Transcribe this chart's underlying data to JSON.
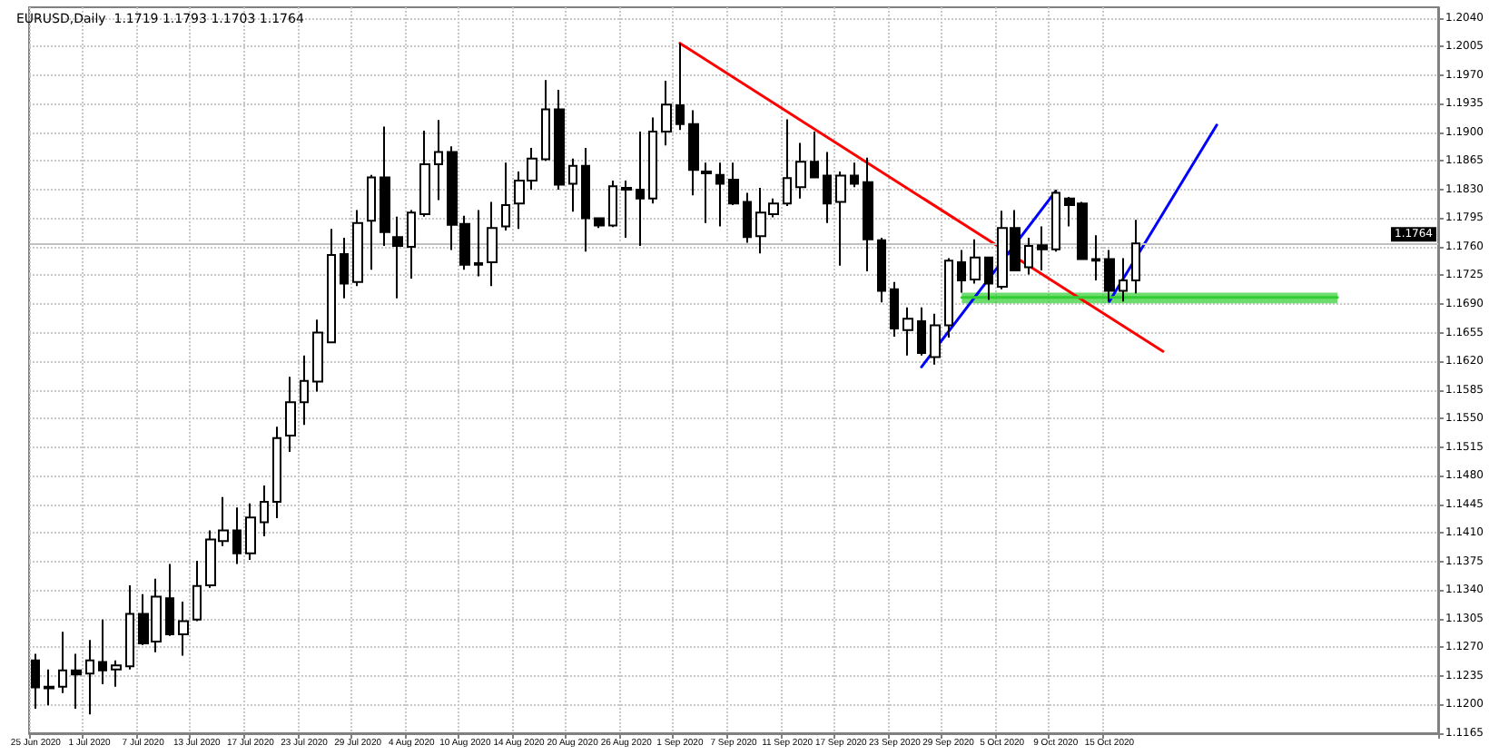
{
  "chart_data": {
    "type": "candlestick",
    "title": "EURUSD,Daily  1.1719 1.1793 1.1703 1.1764",
    "categories": [
      "25 Jun 2020",
      null,
      null,
      null,
      "1 Jul 2020",
      null,
      null,
      null,
      "7 Jul 2020",
      null,
      null,
      null,
      "13 Jul 2020",
      null,
      null,
      null,
      "17 Jul 2020",
      null,
      null,
      null,
      "23 Jul 2020",
      null,
      null,
      null,
      "29 Jul 2020",
      null,
      null,
      null,
      "4 Aug 2020",
      null,
      null,
      null,
      "10 Aug 2020",
      null,
      null,
      null,
      "14 Aug 2020",
      null,
      null,
      null,
      "20 Aug 2020",
      null,
      null,
      null,
      "26 Aug 2020",
      null,
      null,
      null,
      "1 Sep 2020",
      null,
      null,
      null,
      "7 Sep 2020",
      null,
      null,
      null,
      "11 Sep 2020",
      null,
      null,
      null,
      "17 Sep 2020",
      null,
      null,
      null,
      "23 Sep 2020",
      null,
      null,
      null,
      "29 Sep 2020",
      null,
      null,
      null,
      "5 Oct 2020",
      null,
      null,
      null,
      "9 Oct 2020",
      null,
      null,
      null,
      "15 Oct 2020",
      null,
      null,
      null,
      null,
      null,
      null,
      null,
      null,
      null,
      null,
      null,
      null,
      null,
      null,
      null,
      null,
      null,
      null,
      null,
      null,
      null,
      null,
      null,
      null
    ],
    "ohlc": [
      [
        1.1254,
        1.1262,
        1.1195,
        1.1221
      ],
      [
        1.122,
        1.1243,
        1.1199,
        1.1222
      ],
      [
        1.1222,
        1.1289,
        1.1214,
        1.1242
      ],
      [
        1.1242,
        1.1262,
        1.1195,
        1.1237
      ],
      [
        1.1238,
        1.1279,
        1.1188,
        1.1254
      ],
      [
        1.1252,
        1.1304,
        1.1225,
        1.1242
      ],
      [
        1.1243,
        1.1254,
        1.1222,
        1.1248
      ],
      [
        1.1247,
        1.1346,
        1.1243,
        1.1311
      ],
      [
        1.1311,
        1.1335,
        1.1273,
        1.1275
      ],
      [
        1.1277,
        1.1354,
        1.1264,
        1.1332
      ],
      [
        1.133,
        1.1372,
        1.1284,
        1.1286
      ],
      [
        1.1286,
        1.1326,
        1.126,
        1.1302
      ],
      [
        1.1304,
        1.1376,
        1.1302,
        1.1345
      ],
      [
        1.1346,
        1.1413,
        1.1343,
        1.1402
      ],
      [
        1.14,
        1.1454,
        1.1394,
        1.1413
      ],
      [
        1.1413,
        1.1441,
        1.1372,
        1.1385
      ],
      [
        1.1385,
        1.1446,
        1.1377,
        1.1429
      ],
      [
        1.1423,
        1.1468,
        1.1406,
        1.1448
      ],
      [
        1.1448,
        1.154,
        1.1428,
        1.1526
      ],
      [
        1.1529,
        1.1601,
        1.1509,
        1.157
      ],
      [
        1.157,
        1.1627,
        1.1542,
        1.1596
      ],
      [
        1.1595,
        1.1671,
        1.1583,
        1.1655
      ],
      [
        1.1643,
        1.1782,
        1.1642,
        1.175
      ],
      [
        1.1751,
        1.1771,
        1.1697,
        1.1715
      ],
      [
        1.1717,
        1.1805,
        1.1712,
        1.1789
      ],
      [
        1.1792,
        1.1848,
        1.1732,
        1.1845
      ],
      [
        1.1845,
        1.1907,
        1.1761,
        1.1778
      ],
      [
        1.1772,
        1.1797,
        1.1697,
        1.1761
      ],
      [
        1.176,
        1.1805,
        1.1721,
        1.1802
      ],
      [
        1.18,
        1.1902,
        1.1797,
        1.1861
      ],
      [
        1.1861,
        1.1915,
        1.1817,
        1.1876
      ],
      [
        1.1876,
        1.1883,
        1.1756,
        1.1787
      ],
      [
        1.1788,
        1.1798,
        1.1732,
        1.1738
      ],
      [
        1.174,
        1.1805,
        1.1724,
        1.1738
      ],
      [
        1.1741,
        1.1815,
        1.1712,
        1.1783
      ],
      [
        1.1785,
        1.1863,
        1.178,
        1.1811
      ],
      [
        1.1813,
        1.1852,
        1.1782,
        1.1841
      ],
      [
        1.1841,
        1.1881,
        1.183,
        1.1868
      ],
      [
        1.1867,
        1.1964,
        1.1865,
        1.1928
      ],
      [
        1.1928,
        1.1952,
        1.183,
        1.1836
      ],
      [
        1.1837,
        1.1868,
        1.1803,
        1.1859
      ],
      [
        1.1859,
        1.1881,
        1.1754,
        1.1795
      ],
      [
        1.1795,
        1.1795,
        1.1783,
        1.1786
      ],
      [
        1.1786,
        1.1841,
        1.1784,
        1.1834
      ],
      [
        1.1832,
        1.1841,
        1.1771,
        1.183
      ],
      [
        1.183,
        1.1901,
        1.1761,
        1.1819
      ],
      [
        1.1819,
        1.1918,
        1.1813,
        1.1901
      ],
      [
        1.1901,
        1.1963,
        1.1884,
        1.1934
      ],
      [
        1.1933,
        1.2009,
        1.1903,
        1.191
      ],
      [
        1.191,
        1.1927,
        1.1823,
        1.1854
      ],
      [
        1.1852,
        1.1863,
        1.1789,
        1.185
      ],
      [
        1.1848,
        1.1863,
        1.1785,
        1.1837
      ],
      [
        1.1842,
        1.1863,
        1.1811,
        1.1813
      ],
      [
        1.1815,
        1.1826,
        1.1765,
        1.1772
      ],
      [
        1.1773,
        1.1832,
        1.1752,
        1.1802
      ],
      [
        1.18,
        1.1819,
        1.1796,
        1.1813
      ],
      [
        1.1813,
        1.1916,
        1.181,
        1.1844
      ],
      [
        1.1833,
        1.1887,
        1.1819,
        1.1864
      ],
      [
        1.1864,
        1.1901,
        1.1844,
        1.1845
      ],
      [
        1.1847,
        1.1876,
        1.1789,
        1.1813
      ],
      [
        1.1815,
        1.1852,
        1.1737,
        1.1847
      ],
      [
        1.1847,
        1.1863,
        1.1833,
        1.1837
      ],
      [
        1.1839,
        1.1869,
        1.173,
        1.1769
      ],
      [
        1.1768,
        1.1771,
        1.1692,
        1.1706
      ],
      [
        1.1708,
        1.1717,
        1.165,
        1.166
      ],
      [
        1.1658,
        1.1686,
        1.1627,
        1.1672
      ],
      [
        1.1669,
        1.1686,
        1.1627,
        1.163
      ],
      [
        1.1625,
        1.1678,
        1.1616,
        1.1664
      ],
      [
        1.1664,
        1.1746,
        1.1649,
        1.1743
      ],
      [
        1.1741,
        1.1756,
        1.1704,
        1.1719
      ],
      [
        1.172,
        1.1769,
        1.1715,
        1.1747
      ],
      [
        1.1747,
        1.1748,
        1.1695,
        1.1715
      ],
      [
        1.1711,
        1.1804,
        1.1708,
        1.1783
      ],
      [
        1.1783,
        1.1805,
        1.173,
        1.1731
      ],
      [
        1.1735,
        1.1771,
        1.1726,
        1.1761
      ],
      [
        1.1762,
        1.1785,
        1.1731,
        1.1757
      ],
      [
        1.1757,
        1.183,
        1.1754,
        1.1826
      ],
      [
        1.1819,
        1.1821,
        1.1785,
        1.1811
      ],
      [
        1.1813,
        1.1815,
        1.1745,
        1.1745
      ],
      [
        1.1745,
        1.1774,
        1.1719,
        1.1743
      ],
      [
        1.1745,
        1.1756,
        1.1693,
        1.1706
      ],
      [
        1.1706,
        1.1746,
        1.1693,
        1.1719
      ],
      [
        1.1719,
        1.1793,
        1.1703,
        1.1764
      ],
      null,
      null,
      null,
      null,
      null,
      null,
      null,
      null,
      null,
      null,
      null,
      null,
      null,
      null,
      null,
      null,
      null,
      null,
      null,
      null,
      null,
      null
    ],
    "series": [
      {
        "type": "line",
        "color": "#ff0000",
        "values": [
          null,
          null,
          null,
          null,
          null,
          null,
          null,
          null,
          null,
          null,
          null,
          null,
          null,
          null,
          null,
          null,
          null,
          null,
          null,
          null,
          null,
          null,
          null,
          null,
          null,
          null,
          null,
          null,
          null,
          null,
          null,
          null,
          null,
          null,
          null,
          null,
          null,
          null,
          null,
          null,
          null,
          null,
          null,
          null,
          null,
          null,
          null,
          null,
          1.2009,
          null,
          null,
          null,
          null,
          null,
          null,
          null,
          null,
          null,
          null,
          null,
          null,
          null,
          null,
          null,
          null,
          null,
          null,
          null,
          null,
          null,
          null,
          null,
          null,
          null,
          null,
          null,
          null,
          null,
          null,
          null,
          null,
          null,
          null,
          null,
          1.1632,
          null,
          null,
          null,
          null,
          null,
          null,
          null,
          null,
          null,
          null,
          null,
          null,
          null,
          null,
          null,
          null,
          null,
          null,
          null,
          null
        ]
      },
      {
        "type": "line",
        "color": "#0000ff",
        "values": [
          null,
          null,
          null,
          null,
          null,
          null,
          null,
          null,
          null,
          null,
          null,
          null,
          null,
          null,
          null,
          null,
          null,
          null,
          null,
          null,
          null,
          null,
          null,
          null,
          null,
          null,
          null,
          null,
          null,
          null,
          null,
          null,
          null,
          null,
          null,
          null,
          null,
          null,
          null,
          null,
          null,
          null,
          null,
          null,
          null,
          null,
          null,
          null,
          null,
          null,
          null,
          null,
          null,
          null,
          null,
          null,
          null,
          null,
          null,
          null,
          null,
          null,
          null,
          null,
          null,
          null,
          1.1613,
          null,
          null,
          null,
          null,
          null,
          null,
          null,
          null,
          null,
          1.1828,
          null,
          null,
          null,
          null,
          null,
          null,
          null,
          null,
          null,
          null,
          null,
          null,
          null,
          null,
          null,
          null,
          null,
          null,
          null,
          null,
          null,
          null,
          null,
          null,
          null,
          null,
          null,
          null
        ]
      },
      {
        "type": "line",
        "color": "#0000ff",
        "values": [
          null,
          null,
          null,
          null,
          null,
          null,
          null,
          null,
          null,
          null,
          null,
          null,
          null,
          null,
          null,
          null,
          null,
          null,
          null,
          null,
          null,
          null,
          null,
          null,
          null,
          null,
          null,
          null,
          null,
          null,
          null,
          null,
          null,
          null,
          null,
          null,
          null,
          null,
          null,
          null,
          null,
          null,
          null,
          null,
          null,
          null,
          null,
          null,
          null,
          null,
          null,
          null,
          null,
          null,
          null,
          null,
          null,
          null,
          null,
          null,
          null,
          null,
          null,
          null,
          null,
          null,
          null,
          null,
          null,
          null,
          null,
          null,
          null,
          null,
          null,
          null,
          null,
          null,
          null,
          null,
          1.1693,
          null,
          null,
          null,
          null,
          null,
          null,
          null,
          1.1909,
          null,
          null,
          null,
          null,
          null,
          null,
          null,
          null,
          null,
          null,
          null,
          null,
          null,
          null,
          null,
          null
        ]
      },
      {
        "type": "line",
        "color": "#32cd32",
        "values": [
          null,
          null,
          null,
          null,
          null,
          null,
          null,
          null,
          null,
          null,
          null,
          null,
          null,
          null,
          null,
          null,
          null,
          null,
          null,
          null,
          null,
          null,
          null,
          null,
          null,
          null,
          null,
          null,
          null,
          null,
          null,
          null,
          null,
          null,
          null,
          null,
          null,
          null,
          null,
          null,
          null,
          null,
          null,
          null,
          null,
          null,
          null,
          null,
          null,
          null,
          null,
          null,
          null,
          null,
          null,
          null,
          null,
          null,
          null,
          null,
          null,
          null,
          null,
          null,
          null,
          null,
          null,
          null,
          null,
          1.1698,
          1.1698,
          1.1698,
          1.1698,
          1.1698,
          1.1698,
          1.1698,
          1.1698,
          1.1698,
          1.1698,
          1.1698,
          1.1698,
          1.1698,
          1.1698,
          1.1698,
          1.1698,
          1.1698,
          1.1698,
          1.1698,
          1.1698,
          1.1698,
          1.1698,
          1.1698,
          1.1698,
          1.1698,
          1.1698,
          1.1698,
          1.1698,
          1.1698,
          null,
          null,
          null,
          null,
          null,
          null,
          null
        ],
        "lower": [
          null,
          null,
          null,
          null,
          null,
          null,
          null,
          null,
          null,
          null,
          null,
          null,
          null,
          null,
          null,
          null,
          null,
          null,
          null,
          null,
          null,
          null,
          null,
          null,
          null,
          null,
          null,
          null,
          null,
          null,
          null,
          null,
          null,
          null,
          null,
          null,
          null,
          null,
          null,
          null,
          null,
          null,
          null,
          null,
          null,
          null,
          null,
          null,
          null,
          null,
          null,
          null,
          null,
          null,
          null,
          null,
          null,
          null,
          null,
          null,
          null,
          null,
          null,
          null,
          null,
          null,
          null,
          null,
          null,
          1.1691,
          1.1691,
          1.1691,
          1.1691,
          1.1691,
          1.1691,
          1.1691,
          1.1691,
          1.1691,
          1.1691,
          1.1691,
          1.1691,
          1.1691,
          1.1691,
          1.1691,
          1.1691,
          1.1691,
          1.1691,
          1.1691,
          1.1691,
          1.1691,
          1.1691,
          1.1691,
          1.1691,
          1.1691,
          1.1691,
          1.1691,
          1.1691,
          1.1691,
          null,
          null,
          null,
          null,
          null,
          null,
          null
        ],
        "upper": [
          null,
          null,
          null,
          null,
          null,
          null,
          null,
          null,
          null,
          null,
          null,
          null,
          null,
          null,
          null,
          null,
          null,
          null,
          null,
          null,
          null,
          null,
          null,
          null,
          null,
          null,
          null,
          null,
          null,
          null,
          null,
          null,
          null,
          null,
          null,
          null,
          null,
          null,
          null,
          null,
          null,
          null,
          null,
          null,
          null,
          null,
          null,
          null,
          null,
          null,
          null,
          null,
          null,
          null,
          null,
          null,
          null,
          null,
          null,
          null,
          null,
          null,
          null,
          null,
          null,
          null,
          null,
          null,
          null,
          1.1704,
          1.1704,
          1.1704,
          1.1704,
          1.1704,
          1.1704,
          1.1704,
          1.1704,
          1.1704,
          1.1704,
          1.1704,
          1.1704,
          1.1704,
          1.1704,
          1.1704,
          1.1704,
          1.1704,
          1.1704,
          1.1704,
          1.1704,
          1.1704,
          1.1704,
          1.1704,
          1.1704,
          1.1704,
          1.1704,
          1.1704,
          1.1704,
          1.1704,
          null,
          null,
          null,
          null,
          null,
          null,
          null
        ]
      }
    ],
    "ylim": [
      1.1165,
      1.2053
    ],
    "yticks": [
      1.1165,
      {
        "value": 1.12,
        "label": "1.1200"
      },
      1.1235,
      {
        "value": 1.127,
        "label": "1.1270"
      },
      1.1305,
      {
        "value": 1.134,
        "label": "1.1340"
      },
      1.1375,
      {
        "value": 1.141,
        "label": "1.1410"
      },
      1.1445,
      {
        "value": 1.148,
        "label": "1.1480"
      },
      1.1515,
      {
        "value": 1.155,
        "label": "1.1550"
      },
      1.1585,
      {
        "value": 1.162,
        "label": "1.1620"
      },
      1.1655,
      {
        "value": 1.169,
        "label": "1.1690"
      },
      1.1725,
      {
        "value": 1.176,
        "label": "1.1760"
      },
      1.1795,
      {
        "value": 1.183,
        "label": "1.1830"
      },
      1.1865,
      {
        "value": 1.19,
        "label": "1.1900"
      },
      1.1935,
      {
        "value": 1.197,
        "label": "1.1970"
      },
      1.2005,
      {
        "value": 1.204,
        "label": "1.2040"
      }
    ],
    "grid": true,
    "ref_lines": [
      {
        "axis": "y",
        "value": 1.1764,
        "label": "1.1764",
        "color": "#c0c0c0"
      }
    ]
  }
}
